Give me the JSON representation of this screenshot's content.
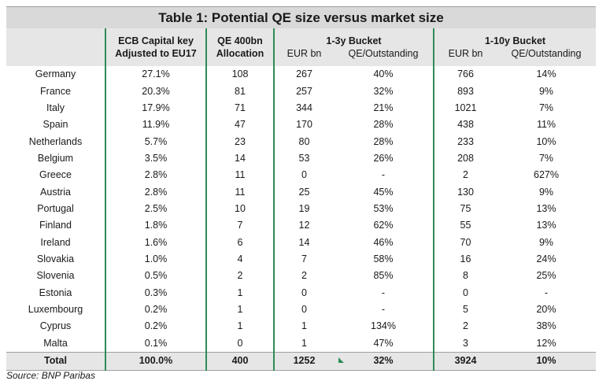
{
  "title": "Table 1: Potential QE size versus market size",
  "headers": {
    "ecb_line1": "ECB Capital key",
    "ecb_line2": "Adjusted to EU17",
    "qe_line1": "QE 400bn",
    "qe_line2": "Allocation",
    "bucket_1_3": "1-3y Bucket",
    "bucket_1_10": "1-10y Bucket",
    "eur_bn": "EUR bn",
    "qe_outstanding": "QE/Outstanding"
  },
  "rows": [
    {
      "country": "Germany",
      "ecb": "27.1%",
      "qe": "108",
      "b3_eur": "267",
      "b3_pct": "40%",
      "b10_eur": "766",
      "b10_pct": "14%"
    },
    {
      "country": "France",
      "ecb": "20.3%",
      "qe": "81",
      "b3_eur": "257",
      "b3_pct": "32%",
      "b10_eur": "893",
      "b10_pct": "9%"
    },
    {
      "country": "Italy",
      "ecb": "17.9%",
      "qe": "71",
      "b3_eur": "344",
      "b3_pct": "21%",
      "b10_eur": "1021",
      "b10_pct": "7%"
    },
    {
      "country": "Spain",
      "ecb": "11.9%",
      "qe": "47",
      "b3_eur": "170",
      "b3_pct": "28%",
      "b10_eur": "438",
      "b10_pct": "11%"
    },
    {
      "country": "Netherlands",
      "ecb": "5.7%",
      "qe": "23",
      "b3_eur": "80",
      "b3_pct": "28%",
      "b10_eur": "233",
      "b10_pct": "10%"
    },
    {
      "country": "Belgium",
      "ecb": "3.5%",
      "qe": "14",
      "b3_eur": "53",
      "b3_pct": "26%",
      "b10_eur": "208",
      "b10_pct": "7%"
    },
    {
      "country": "Greece",
      "ecb": "2.8%",
      "qe": "11",
      "b3_eur": "0",
      "b3_pct": "-",
      "b10_eur": "2",
      "b10_pct": "627%"
    },
    {
      "country": "Austria",
      "ecb": "2.8%",
      "qe": "11",
      "b3_eur": "25",
      "b3_pct": "45%",
      "b10_eur": "130",
      "b10_pct": "9%"
    },
    {
      "country": "Portugal",
      "ecb": "2.5%",
      "qe": "10",
      "b3_eur": "19",
      "b3_pct": "53%",
      "b10_eur": "75",
      "b10_pct": "13%"
    },
    {
      "country": "Finland",
      "ecb": "1.8%",
      "qe": "7",
      "b3_eur": "12",
      "b3_pct": "62%",
      "b10_eur": "55",
      "b10_pct": "13%"
    },
    {
      "country": "Ireland",
      "ecb": "1.6%",
      "qe": "6",
      "b3_eur": "14",
      "b3_pct": "46%",
      "b10_eur": "70",
      "b10_pct": "9%"
    },
    {
      "country": "Slovakia",
      "ecb": "1.0%",
      "qe": "4",
      "b3_eur": "7",
      "b3_pct": "58%",
      "b10_eur": "16",
      "b10_pct": "24%"
    },
    {
      "country": "Slovenia",
      "ecb": "0.5%",
      "qe": "2",
      "b3_eur": "2",
      "b3_pct": "85%",
      "b10_eur": "8",
      "b10_pct": "25%"
    },
    {
      "country": "Estonia",
      "ecb": "0.3%",
      "qe": "1",
      "b3_eur": "0",
      "b3_pct": "-",
      "b10_eur": "0",
      "b10_pct": "-"
    },
    {
      "country": "Luxembourg",
      "ecb": "0.2%",
      "qe": "1",
      "b3_eur": "0",
      "b3_pct": "-",
      "b10_eur": "5",
      "b10_pct": "20%"
    },
    {
      "country": "Cyprus",
      "ecb": "0.2%",
      "qe": "1",
      "b3_eur": "1",
      "b3_pct": "134%",
      "b10_eur": "2",
      "b10_pct": "38%"
    },
    {
      "country": "Malta",
      "ecb": "0.1%",
      "qe": "0",
      "b3_eur": "1",
      "b3_pct": "47%",
      "b10_eur": "3",
      "b10_pct": "12%"
    }
  ],
  "total": {
    "country": "Total",
    "ecb": "100.0%",
    "qe": "400",
    "b3_eur": "1252",
    "b3_pct": "32%",
    "b10_eur": "3924",
    "b10_pct": "10%"
  },
  "source": "Source: BNP Paribas",
  "colors": {
    "accent_green": "#2e8b57",
    "header_gray": "#e6e6e6",
    "title_gray": "#d9d9d9"
  }
}
